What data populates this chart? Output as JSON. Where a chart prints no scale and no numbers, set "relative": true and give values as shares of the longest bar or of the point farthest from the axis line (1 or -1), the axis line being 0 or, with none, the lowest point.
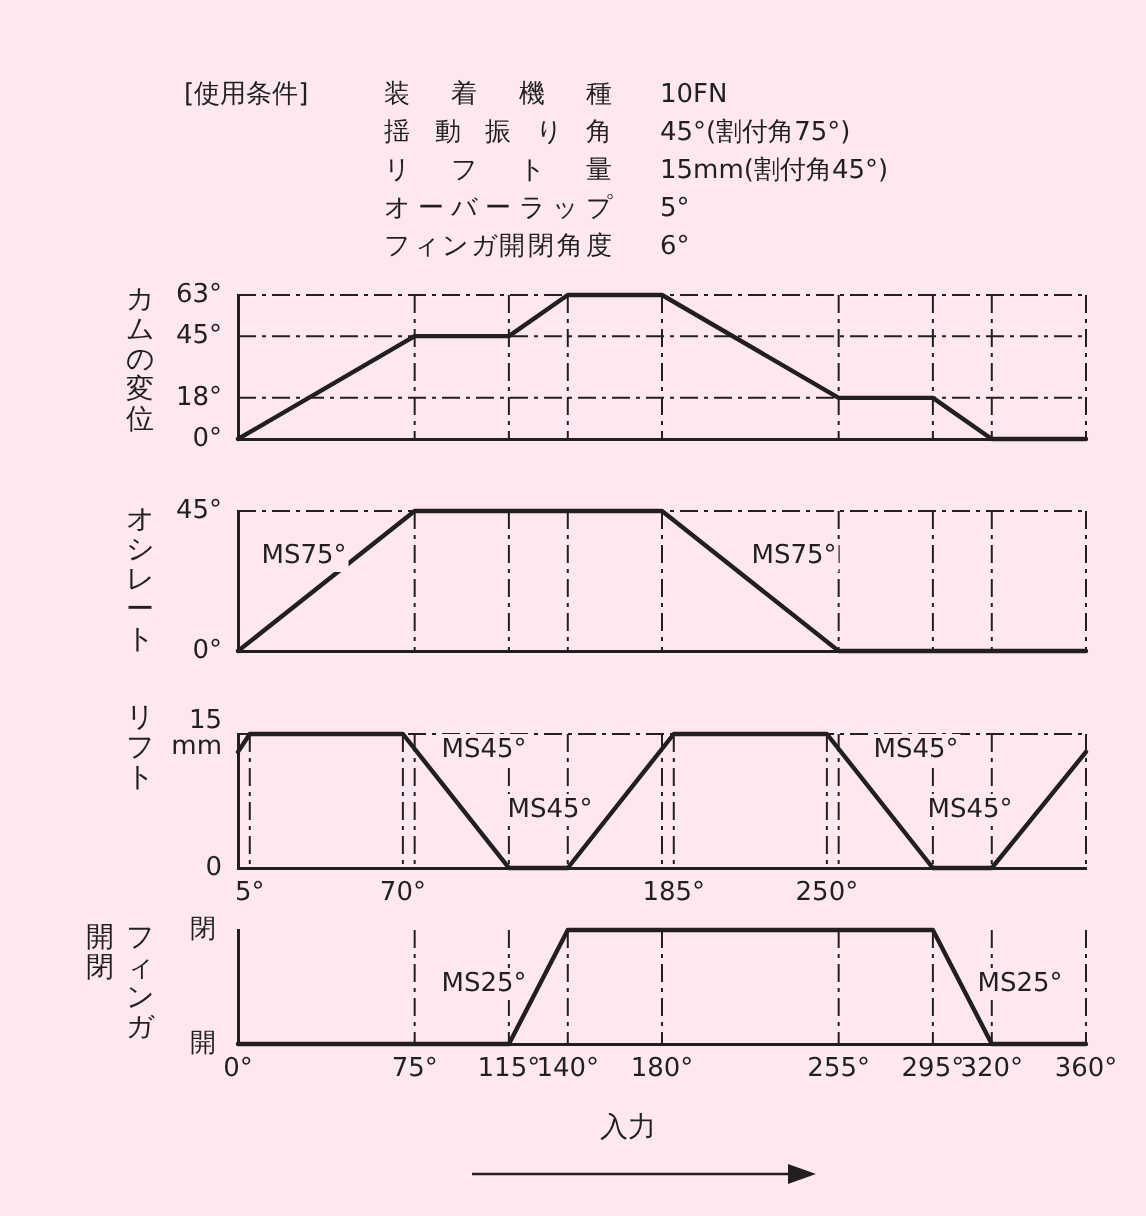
{
  "chart_data": [
    {
      "type": "line",
      "title": "[使用条件]",
      "annotations": [
        "装着機種",
        "10FN",
        "揺動振り角",
        "45°(割付角75°)",
        "リフト量",
        "15mm(割付角45°)",
        "オーバーラップ",
        "5°",
        "フィンガ開閉角度",
        "6°"
      ],
      "ylabel": "カムの変位",
      "x": [
        0,
        75,
        115,
        140,
        180,
        255,
        295,
        320,
        360
      ],
      "values": [
        0,
        45,
        45,
        63,
        63,
        18,
        18,
        0,
        0
      ],
      "color": "#231f20",
      "xlim": [
        0,
        360
      ],
      "xticks": [
        {
          "value": 0,
          "label": null
        },
        {
          "value": 75,
          "label": null
        },
        {
          "value": 115,
          "label": null
        },
        {
          "value": 140,
          "label": null
        },
        {
          "value": 180,
          "label": null
        },
        {
          "value": 255,
          "label": null
        },
        {
          "value": 295,
          "label": null
        },
        {
          "value": 320,
          "label": null
        },
        {
          "value": 360,
          "label": null
        }
      ],
      "ylim": [
        0,
        63
      ],
      "yticks": [
        {
          "value": 0,
          "label": "0°"
        },
        {
          "value": 18,
          "label": "18°"
        },
        {
          "value": 45,
          "label": "45°"
        },
        {
          "value": 63,
          "label": "63°"
        }
      ],
      "grid": true,
      "tick_labels": "y",
      "marker": "none",
      "line_style": "solid",
      "legend": false
    },
    {
      "type": "line",
      "ylabel": "オシレート",
      "annotations": [
        "MS75°",
        "MS75°"
      ],
      "x": [
        0,
        75,
        180,
        255,
        360
      ],
      "values": [
        0,
        45,
        45,
        0,
        0
      ],
      "color": "#231f20",
      "xlim": [
        0,
        360
      ],
      "xticks": [
        {
          "value": 0,
          "label": null
        },
        {
          "value": 75,
          "label": null
        },
        {
          "value": 115,
          "label": null
        },
        {
          "value": 140,
          "label": null
        },
        {
          "value": 180,
          "label": null
        },
        {
          "value": 255,
          "label": null
        },
        {
          "value": 295,
          "label": null
        },
        {
          "value": 320,
          "label": null
        },
        {
          "value": 360,
          "label": null
        }
      ],
      "ylim": [
        0,
        45
      ],
      "yticks": [
        {
          "value": 0,
          "label": "0°"
        },
        {
          "value": 45,
          "label": "45°"
        }
      ],
      "grid": true,
      "tick_labels": "y",
      "marker": "none",
      "line_style": "solid",
      "legend": false
    },
    {
      "type": "line",
      "ylabel": "リフト",
      "annotations": [
        "MS45°",
        "MS45°",
        "MS45°",
        "MS45°"
      ],
      "x": [
        0,
        5,
        70,
        115,
        140,
        185,
        250,
        295,
        320,
        360
      ],
      "values": [
        13,
        15,
        15,
        0,
        0,
        15,
        15,
        0,
        0,
        13
      ],
      "color": "#231f20",
      "xlim": [
        0,
        360
      ],
      "xticks": [
        {
          "value": 0,
          "label": null
        },
        {
          "value": 5,
          "label": "5°"
        },
        {
          "value": 70,
          "label": "70°"
        },
        {
          "value": 75,
          "label": null
        },
        {
          "value": 115,
          "label": null
        },
        {
          "value": 140,
          "label": null
        },
        {
          "value": 180,
          "label": null
        },
        {
          "value": 185,
          "label": "185°"
        },
        {
          "value": 250,
          "label": "250°"
        },
        {
          "value": 255,
          "label": null
        },
        {
          "value": 295,
          "label": null
        },
        {
          "value": 320,
          "label": null
        },
        {
          "value": 360,
          "label": null
        }
      ],
      "ylim": [
        0,
        15
      ],
      "yticks": [
        0,
        {
          "value": 15,
          "label": "15\nmm"
        }
      ],
      "grid": true,
      "marker": "none",
      "line_style": "solid",
      "legend": false
    },
    {
      "type": "line",
      "ylabel": "フィンガ開閉",
      "xlabel": "入力",
      "annotations": [
        "閉",
        "開",
        "MS25°",
        "MS25°"
      ],
      "relative": true,
      "x": [
        0,
        115,
        140,
        295,
        320,
        360
      ],
      "values": [
        0,
        0,
        1,
        1,
        0,
        0
      ],
      "color": "#231f20",
      "xlim": [
        0,
        360
      ],
      "xticks": [
        {
          "value": 0,
          "label": "0°"
        },
        {
          "value": 75,
          "label": "75°"
        },
        {
          "value": 115,
          "label": "115°"
        },
        {
          "value": 140,
          "label": "140°"
        },
        {
          "value": 180,
          "label": "180°"
        },
        {
          "value": 255,
          "label": "255°"
        },
        {
          "value": 295,
          "label": "295°"
        },
        {
          "value": 320,
          "label": "320°"
        },
        {
          "value": 360,
          "label": "360°"
        }
      ],
      "grid": "x",
      "marker": "none",
      "line_style": "solid",
      "legend": false
    }
  ]
}
